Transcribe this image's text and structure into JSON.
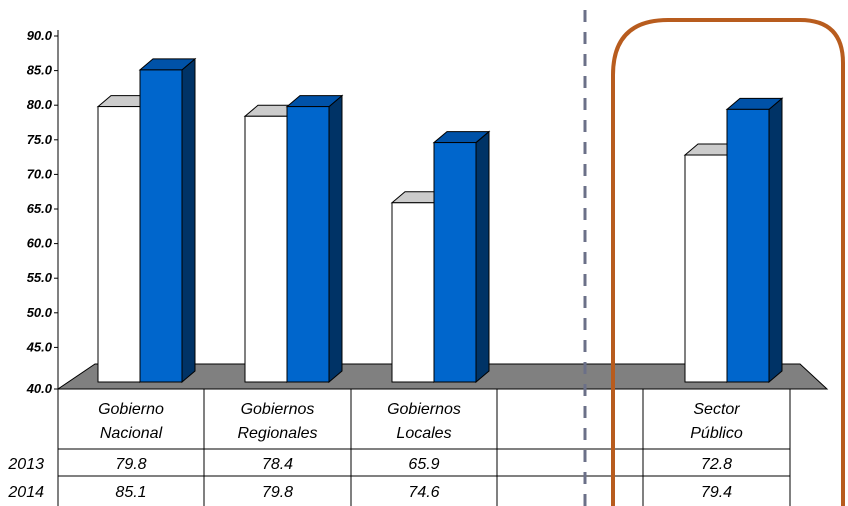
{
  "colors": {
    "series_2013": "#ffffff",
    "series_2014": "#0066cc",
    "floor": "#808080",
    "highlight_box": "#b85c1e",
    "divider": "#6b7088"
  },
  "chart_data": {
    "type": "bar",
    "categories": [
      [
        "Gobierno",
        "Nacional"
      ],
      [
        "Gobiernos",
        "Regionales"
      ],
      [
        "Gobiernos",
        "Locales"
      ],
      [
        "",
        ""
      ],
      [
        "Sector",
        "Público"
      ]
    ],
    "series": [
      {
        "name": "2013",
        "values": [
          79.8,
          78.4,
          65.9,
          null,
          72.8
        ],
        "labels": [
          "79.8",
          "78.4",
          "65.9",
          "",
          "72.8"
        ]
      },
      {
        "name": "2014",
        "values": [
          85.1,
          79.8,
          74.6,
          null,
          79.4
        ],
        "labels": [
          "85.1",
          "79.8",
          "74.6",
          "",
          "79.4"
        ]
      }
    ],
    "yticks": [
      "40.0",
      "45.0",
      "50.0",
      "55.0",
      "60.0",
      "65.0",
      "70.0",
      "75.0",
      "80.0",
      "85.0",
      "90.0"
    ],
    "ylim": [
      40,
      90
    ],
    "style": "3d-column with data table",
    "highlighted_category": "Sector Público"
  }
}
